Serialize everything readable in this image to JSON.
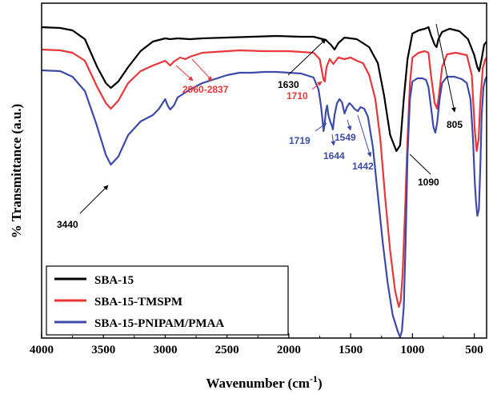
{
  "chart_data": {
    "type": "line",
    "title": "",
    "xlabel": "Wavenumber (cm",
    "xlabel_sup": "-1",
    "xlabel_close": ")",
    "ylabel": "% Transmittance (a.u.)",
    "xlim": [
      4000,
      400
    ],
    "x_reversed": true,
    "xticks": [
      4000,
      3500,
      3000,
      2500,
      2000,
      1500,
      1000,
      500
    ],
    "grid": false,
    "legend_position": "bottom-left",
    "series": [
      {
        "name": "SBA-15",
        "color": "#000000",
        "points": [
          [
            4000,
            30
          ],
          [
            3850,
            31
          ],
          [
            3750,
            34
          ],
          [
            3650,
            45
          ],
          [
            3550,
            80
          ],
          [
            3480,
            100
          ],
          [
            3440,
            106
          ],
          [
            3380,
            98
          ],
          [
            3300,
            80
          ],
          [
            3200,
            60
          ],
          [
            3100,
            48
          ],
          [
            3000,
            44
          ],
          [
            2960,
            45
          ],
          [
            2900,
            44
          ],
          [
            2800,
            45
          ],
          [
            2700,
            44
          ],
          [
            2500,
            43
          ],
          [
            2300,
            42
          ],
          [
            2100,
            41
          ],
          [
            1900,
            42
          ],
          [
            1800,
            42
          ],
          [
            1700,
            46
          ],
          [
            1660,
            52
          ],
          [
            1630,
            58
          ],
          [
            1600,
            50
          ],
          [
            1550,
            43
          ],
          [
            1450,
            45
          ],
          [
            1350,
            55
          ],
          [
            1280,
            75
          ],
          [
            1230,
            115
          ],
          [
            1180,
            165
          ],
          [
            1130,
            185
          ],
          [
            1100,
            178
          ],
          [
            1090,
            160
          ],
          [
            1070,
            120
          ],
          [
            1040,
            70
          ],
          [
            1000,
            38
          ],
          [
            950,
            34
          ],
          [
            900,
            32
          ],
          [
            870,
            30
          ],
          [
            850,
            40
          ],
          [
            820,
            52
          ],
          [
            805,
            55
          ],
          [
            790,
            45
          ],
          [
            760,
            36
          ],
          [
            700,
            32
          ],
          [
            620,
            35
          ],
          [
            550,
            45
          ],
          [
            500,
            65
          ],
          [
            475,
            80
          ],
          [
            460,
            85
          ],
          [
            440,
            70
          ],
          [
            420,
            52
          ],
          [
            400,
            48
          ]
        ]
      },
      {
        "name": "SBA-15-TMSPM",
        "color": "#e8363a",
        "points": [
          [
            4000,
            58
          ],
          [
            3850,
            59
          ],
          [
            3750,
            62
          ],
          [
            3650,
            72
          ],
          [
            3550,
            105
          ],
          [
            3480,
            125
          ],
          [
            3440,
            132
          ],
          [
            3380,
            122
          ],
          [
            3300,
            100
          ],
          [
            3200,
            85
          ],
          [
            3100,
            78
          ],
          [
            3000,
            72
          ],
          [
            2960,
            78
          ],
          [
            2930,
            73
          ],
          [
            2880,
            68
          ],
          [
            2837,
            70
          ],
          [
            2800,
            67
          ],
          [
            2700,
            62
          ],
          [
            2600,
            61
          ],
          [
            2400,
            59
          ],
          [
            2200,
            60
          ],
          [
            2000,
            60
          ],
          [
            1900,
            61
          ],
          [
            1800,
            62
          ],
          [
            1750,
            70
          ],
          [
            1720,
            95
          ],
          [
            1710,
            98
          ],
          [
            1695,
            80
          ],
          [
            1670,
            70
          ],
          [
            1640,
            76
          ],
          [
            1620,
            72
          ],
          [
            1600,
            68
          ],
          [
            1550,
            70
          ],
          [
            1500,
            68
          ],
          [
            1450,
            72
          ],
          [
            1400,
            75
          ],
          [
            1350,
            90
          ],
          [
            1300,
            120
          ],
          [
            1260,
            170
          ],
          [
            1220,
            245
          ],
          [
            1180,
            310
          ],
          [
            1140,
            360
          ],
          [
            1110,
            380
          ],
          [
            1095,
            372
          ],
          [
            1080,
            340
          ],
          [
            1060,
            260
          ],
          [
            1040,
            170
          ],
          [
            1020,
            100
          ],
          [
            1000,
            68
          ],
          [
            950,
            62
          ],
          [
            900,
            60
          ],
          [
            870,
            62
          ],
          [
            850,
            90
          ],
          [
            820,
            125
          ],
          [
            800,
            132
          ],
          [
            785,
            115
          ],
          [
            760,
            80
          ],
          [
            720,
            64
          ],
          [
            650,
            62
          ],
          [
            560,
            65
          ],
          [
            520,
            90
          ],
          [
            495,
            160
          ],
          [
            480,
            185
          ],
          [
            465,
            170
          ],
          [
            450,
            120
          ],
          [
            430,
            80
          ],
          [
            410,
            70
          ],
          [
            400,
            68
          ]
        ]
      },
      {
        "name": "SBA-15-PNIPAM/PMAA",
        "color": "#3d4aa8",
        "points": [
          [
            4000,
            84
          ],
          [
            3850,
            85
          ],
          [
            3750,
            92
          ],
          [
            3650,
            110
          ],
          [
            3560,
            150
          ],
          [
            3480,
            190
          ],
          [
            3440,
            202
          ],
          [
            3380,
            192
          ],
          [
            3300,
            165
          ],
          [
            3200,
            148
          ],
          [
            3100,
            140
          ],
          [
            3050,
            132
          ],
          [
            3000,
            120
          ],
          [
            2980,
            128
          ],
          [
            2960,
            133
          ],
          [
            2930,
            128
          ],
          [
            2900,
            118
          ],
          [
            2870,
            115
          ],
          [
            2800,
            108
          ],
          [
            2700,
            100
          ],
          [
            2600,
            95
          ],
          [
            2500,
            90
          ],
          [
            2400,
            87
          ],
          [
            2300,
            87
          ],
          [
            2200,
            86
          ],
          [
            2100,
            86
          ],
          [
            2000,
            87
          ],
          [
            1900,
            88
          ],
          [
            1800,
            93
          ],
          [
            1760,
            108
          ],
          [
            1740,
            128
          ],
          [
            1725,
            150
          ],
          [
            1719,
            160
          ],
          [
            1710,
            150
          ],
          [
            1700,
            135
          ],
          [
            1690,
            128
          ],
          [
            1680,
            140
          ],
          [
            1665,
            148
          ],
          [
            1650,
            154
          ],
          [
            1644,
            158
          ],
          [
            1630,
            140
          ],
          [
            1610,
            125
          ],
          [
            1590,
            120
          ],
          [
            1570,
            124
          ],
          [
            1549,
            138
          ],
          [
            1530,
            130
          ],
          [
            1510,
            125
          ],
          [
            1490,
            128
          ],
          [
            1470,
            132
          ],
          [
            1442,
            135
          ],
          [
            1420,
            130
          ],
          [
            1390,
            132
          ],
          [
            1360,
            142
          ],
          [
            1320,
            180
          ],
          [
            1280,
            240
          ],
          [
            1240,
            300
          ],
          [
            1200,
            350
          ],
          [
            1160,
            390
          ],
          [
            1120,
            410
          ],
          [
            1100,
            418
          ],
          [
            1085,
            410
          ],
          [
            1070,
            380
          ],
          [
            1055,
            300
          ],
          [
            1040,
            190
          ],
          [
            1020,
            120
          ],
          [
            1000,
            98
          ],
          [
            960,
            94
          ],
          [
            920,
            94
          ],
          [
            890,
            96
          ],
          [
            870,
            105
          ],
          [
            850,
            130
          ],
          [
            830,
            155
          ],
          [
            815,
            162
          ],
          [
            800,
            150
          ],
          [
            780,
            120
          ],
          [
            760,
            100
          ],
          [
            720,
            92
          ],
          [
            660,
            92
          ],
          [
            600,
            95
          ],
          [
            560,
            100
          ],
          [
            530,
            120
          ],
          [
            510,
            170
          ],
          [
            495,
            225
          ],
          [
            485,
            250
          ],
          [
            475,
            266
          ],
          [
            462,
            258
          ],
          [
            450,
            200
          ],
          [
            440,
            140
          ],
          [
            425,
            105
          ],
          [
            410,
            95
          ],
          [
            400,
            92
          ]
        ]
      }
    ],
    "annotations": [
      {
        "text": "3440",
        "color": "#000000"
      },
      {
        "text": "2960-2837",
        "color": "#e8363a"
      },
      {
        "text": "1630",
        "color": "#000000"
      },
      {
        "text": "1710",
        "color": "#e8363a"
      },
      {
        "text": "1719",
        "color": "#3d4aa8"
      },
      {
        "text": "1644",
        "color": "#3d4aa8"
      },
      {
        "text": "1549",
        "color": "#3d4aa8"
      },
      {
        "text": "1442",
        "color": "#3d4aa8"
      },
      {
        "text": "1090",
        "color": "#000000"
      },
      {
        "text": "805",
        "color": "#000000"
      }
    ]
  }
}
